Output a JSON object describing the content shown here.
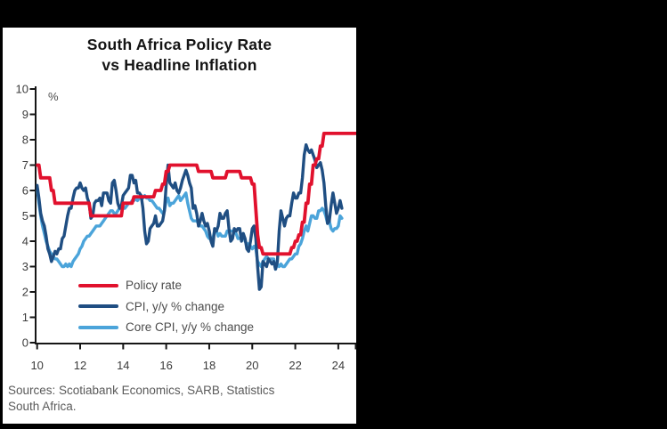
{
  "canvas": {
    "background": "#000000",
    "panel_background": "#ffffff"
  },
  "chart": {
    "title_line1": "South Africa Policy Rate",
    "title_line2": "vs Headline Inflation",
    "y_unit_label": "%",
    "legend": [
      {
        "label": "Policy rate",
        "color": "#e1112d"
      },
      {
        "label": "CPI, y/y % change",
        "color": "#1f4e82"
      },
      {
        "label": "Core CPI, y/y % change",
        "color": "#4ba4da"
      }
    ],
    "source_line1": "Sources: Scotiabank Economics, SARB, Statistics",
    "source_line2": "South Africa."
  },
  "chart_data": {
    "type": "line",
    "title": "South Africa Policy Rate vs Headline Inflation",
    "xlabel": "",
    "ylabel": "%",
    "ylim": [
      0,
      10
    ],
    "xlim_years": [
      2010,
      2024.9
    ],
    "grid": false,
    "legend_position": "inside-lower-left",
    "yticks": [
      0,
      1,
      2,
      3,
      4,
      5,
      6,
      7,
      8,
      9,
      10
    ],
    "xticks": [
      10,
      12,
      14,
      16,
      18,
      20,
      22,
      24
    ],
    "x_start_year": 2010,
    "x_step_months": 1,
    "series": [
      {
        "id": "policy-rate",
        "name": "Policy rate",
        "color": "#e1112d",
        "values": [
          7,
          7,
          6.5,
          6.5,
          6.5,
          6.5,
          6.5,
          6.5,
          6,
          6,
          5.5,
          5.5,
          5.5,
          5.5,
          5.5,
          5.5,
          5.5,
          5.5,
          5.5,
          5.5,
          5.5,
          5.5,
          5.5,
          5.5,
          5.5,
          5.5,
          5.5,
          5.5,
          5.5,
          5.5,
          5,
          5,
          5,
          5,
          5,
          5,
          5,
          5,
          5,
          5,
          5,
          5,
          5,
          5,
          5,
          5,
          5,
          5,
          5.5,
          5.5,
          5.5,
          5.5,
          5.5,
          5.5,
          5.75,
          5.75,
          5.75,
          5.75,
          5.75,
          5.75,
          5.75,
          5.75,
          5.75,
          5.75,
          5.75,
          5.75,
          6,
          6,
          6,
          6,
          6.25,
          6.25,
          6.75,
          6.75,
          7,
          7,
          7,
          7,
          7,
          7,
          7,
          7,
          7,
          7,
          7,
          7,
          7,
          7,
          7,
          7,
          6.75,
          6.75,
          6.75,
          6.75,
          6.75,
          6.75,
          6.75,
          6.75,
          6.5,
          6.5,
          6.5,
          6.5,
          6.5,
          6.5,
          6.5,
          6.5,
          6.75,
          6.75,
          6.75,
          6.75,
          6.75,
          6.75,
          6.75,
          6.75,
          6.5,
          6.5,
          6.5,
          6.5,
          6.5,
          6.5,
          6.25,
          6.25,
          5.25,
          4.25,
          3.75,
          3.75,
          3.5,
          3.5,
          3.5,
          3.5,
          3.5,
          3.5,
          3.5,
          3.5,
          3.5,
          3.5,
          3.5,
          3.5,
          3.5,
          3.5,
          3.5,
          3.5,
          3.75,
          3.75,
          4,
          4,
          4.25,
          4.25,
          4.75,
          4.75,
          5.5,
          5.5,
          6.25,
          6.25,
          7,
          7,
          7.25,
          7.25,
          7.75,
          7.75,
          8.25,
          8.25,
          8.25,
          8.25,
          8.25,
          8.25,
          8.25,
          8.25,
          8.25,
          8.25,
          8.25,
          8.25,
          8.25,
          8.25,
          8.25,
          8.25,
          8.25,
          8.25,
          8.25
        ]
      },
      {
        "id": "cpi",
        "name": "CPI, y/y % change",
        "color": "#1f4e82",
        "values": [
          6.2,
          5.7,
          5.1,
          4.8,
          4.6,
          4.2,
          3.7,
          3.5,
          3.2,
          3.4,
          3.6,
          3.5,
          3.7,
          3.7,
          4.1,
          4.2,
          4.6,
          5,
          5.3,
          5.3,
          5.7,
          6,
          6.1,
          6.1,
          6.3,
          6.1,
          6,
          6.1,
          5.7,
          5.5,
          4.9,
          5,
          5.5,
          5.6,
          5.6,
          5.7,
          5.4,
          5.9,
          5.9,
          5.9,
          5.6,
          5.5,
          6.3,
          6.4,
          6,
          5.5,
          5.3,
          5.4,
          5.8,
          5.9,
          6,
          6.1,
          6.6,
          6.6,
          6.3,
          6.4,
          5.9,
          5.9,
          5.8,
          5.3,
          4.4,
          3.9,
          4,
          4.5,
          4.6,
          4.7,
          5,
          4.6,
          4.6,
          4.7,
          4.8,
          5.2,
          6.2,
          7,
          6.3,
          6.2,
          6.1,
          6.3,
          6,
          5.9,
          6.1,
          6.4,
          6.6,
          6.8,
          6.6,
          6.3,
          6.1,
          5.3,
          5.4,
          5.1,
          4.6,
          4.8,
          5.1,
          4.8,
          4.6,
          4.7,
          4.4,
          4,
          3.8,
          4.5,
          4.4,
          4.6,
          5.1,
          4.9,
          4.9,
          5.1,
          5.2,
          4.5,
          4,
          4.1,
          4.5,
          4.4,
          4.5,
          4.5,
          4,
          4.3,
          4.1,
          3.7,
          3.6,
          4,
          4.5,
          4.6,
          4.1,
          3,
          2.1,
          2.2,
          3.2,
          3.1,
          3,
          3.3,
          3.2,
          3.1,
          3.2,
          2.9,
          3.2,
          4.4,
          5.2,
          4.9,
          4.6,
          4.9,
          5,
          5,
          5.5,
          5.9,
          5.7,
          5.7,
          5.9,
          5.9,
          6.5,
          7.4,
          7.8,
          7.6,
          7.5,
          7.6,
          7.4,
          7.2,
          6.9,
          7,
          7.1,
          6.8,
          6.3,
          5.4,
          4.7,
          4.8,
          5.4,
          5.9,
          5.5,
          5.1,
          5.3,
          5.6,
          5.3
        ]
      },
      {
        "id": "core-cpi",
        "name": "Core CPI, y/y % change",
        "color": "#4ba4da",
        "values": [
          6.1,
          5.5,
          5,
          4.6,
          4.3,
          4,
          3.8,
          3.6,
          3.5,
          3.4,
          3.3,
          3.3,
          3.2,
          3.1,
          3,
          3,
          3.1,
          3,
          3.1,
          3,
          3.2,
          3.3,
          3.4,
          3.5,
          3.7,
          3.8,
          4,
          4.1,
          4.2,
          4.2,
          4.3,
          4.4,
          4.5,
          4.6,
          4.6,
          4.6,
          4.7,
          4.8,
          4.9,
          5,
          5.1,
          5.2,
          5.2,
          5.1,
          5.1,
          5.2,
          5.3,
          5.3,
          5.3,
          5.3,
          5.4,
          5.5,
          5.5,
          5.6,
          5.6,
          5.7,
          5.6,
          5.7,
          5.8,
          5.7,
          5.8,
          5.7,
          5.7,
          5.6,
          5.6,
          5.5,
          5.4,
          5.3,
          5.3,
          5.2,
          5.1,
          5.2,
          5.6,
          5.7,
          5.4,
          5.5,
          5.5,
          5.6,
          5.7,
          5.8,
          5.6,
          5.7,
          5.8,
          5.9,
          5.5,
          5.2,
          4.9,
          4.8,
          4.8,
          4.8,
          4.7,
          4.6,
          4.6,
          4.5,
          4.4,
          4.2,
          4.1,
          4.1,
          4.1,
          4.4,
          4.4,
          4.2,
          4.3,
          4.2,
          4.2,
          4.2,
          4.4,
          4.4,
          4.4,
          4.4,
          4.4,
          4.3,
          4.1,
          4.1,
          4.2,
          4.3,
          4,
          3.9,
          3.9,
          3.8,
          3.7,
          3.8,
          3.7,
          3.2,
          3.1,
          3,
          3.2,
          3.3,
          3.4,
          3.3,
          3.3,
          3.3,
          3.3,
          2.9,
          3.1,
          3,
          3.1,
          3,
          3,
          3.1,
          3.2,
          3.3,
          3.3,
          3.4,
          3.5,
          3.5,
          3.8,
          3.9,
          4.1,
          4.4,
          4.6,
          4.4,
          4.7,
          5,
          5,
          4.9,
          4.9,
          5.2,
          5.2,
          5.3,
          5.2,
          5,
          4.7,
          4.8,
          4.5,
          4.4,
          4.5,
          4.5,
          4.6,
          5,
          4.9
        ]
      }
    ]
  }
}
